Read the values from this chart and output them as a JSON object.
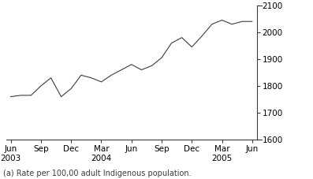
{
  "x_labels": [
    "Jun\n2003",
    "Sep",
    "Dec",
    "Mar\n2004",
    "Jun",
    "Sep",
    "Dec",
    "Mar\n2005",
    "Jun"
  ],
  "x_positions": [
    0,
    1,
    2,
    3,
    4,
    5,
    6,
    7,
    8
  ],
  "y_values": [
    1760,
    1765,
    1765,
    1800,
    1830,
    1760,
    1790,
    1840,
    1830,
    1815,
    1840,
    1860,
    1880,
    1860,
    1875,
    1905,
    1960,
    1980,
    1945,
    1985,
    2030,
    2045,
    2030,
    2040,
    2040
  ],
  "x_data": [
    0,
    0.33,
    0.67,
    1,
    1.33,
    1.67,
    2,
    2.33,
    2.67,
    3,
    3.33,
    3.67,
    4,
    4.33,
    4.67,
    5,
    5.33,
    5.67,
    6,
    6.33,
    6.67,
    7,
    7.33,
    7.67,
    8
  ],
  "ylim": [
    1600,
    2100
  ],
  "yticks": [
    1600,
    1700,
    1800,
    1900,
    2000,
    2100
  ],
  "line_color": "#3c3c3c",
  "background_color": "#ffffff",
  "footnote": "(a) Rate per 100,00 adult Indigenous population.",
  "footnote_fontsize": 7,
  "tick_fontsize": 7.5
}
